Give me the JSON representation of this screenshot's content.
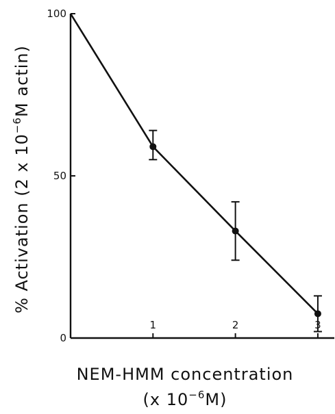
{
  "chart_data": {
    "type": "line",
    "title": "",
    "xlabel": {
      "line1": "NEM-HMM concentration",
      "line2_pre": "(x 10",
      "line2_sup": "−6",
      "line2_post": "M)"
    },
    "ylabel": {
      "pre": "% Activation (2 x 10",
      "sup": "−6",
      "post": "M actin)"
    },
    "xlim": [
      0,
      3.2
    ],
    "ylim": [
      0,
      100
    ],
    "x_ticks": [
      1,
      2,
      3
    ],
    "x_tick_labels": [
      "1",
      "2",
      "3"
    ],
    "y_ticks": [
      0,
      50,
      100
    ],
    "y_tick_labels": [
      "0",
      "50",
      "100"
    ],
    "grid": false,
    "legend": "none",
    "series": [
      {
        "x": [
          0,
          1,
          2,
          3
        ],
        "y": [
          100,
          59,
          33,
          7.5
        ],
        "markers": [
          false,
          true,
          true,
          true
        ],
        "error": [
          null,
          [
            55,
            64
          ],
          [
            24,
            42
          ],
          [
            2,
            13
          ]
        ]
      }
    ],
    "colors": {
      "ink": "#111111",
      "background": "#ffffff"
    }
  }
}
